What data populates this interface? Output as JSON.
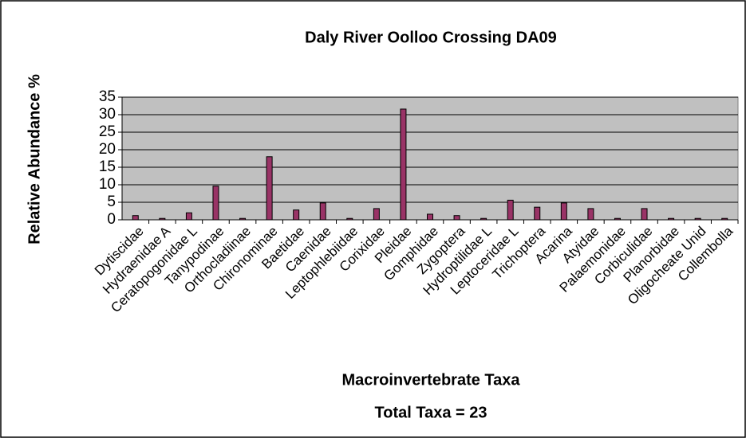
{
  "chart_data": {
    "type": "bar",
    "title": "Daly River Oolloo Crossing DA09",
    "y_label": "Relative Abundance %",
    "x_label": "Macroinvertebrate Taxa",
    "annotation": "Total Taxa = 23",
    "categories": [
      "Dytiscidae",
      "Hydraenidae A",
      "Ceratopogonidae L",
      "Tanypodinae",
      "Orthocladiinae",
      "Chironominae",
      "Baetidae",
      "Caenidae",
      "Leptophlebiidae",
      "Corixidae",
      "Pleidae",
      "Gomphidae",
      "Zygoptera",
      "Hydroptilidae L",
      "Leptoceridae L",
      "Trichoptera",
      "Acarina",
      "Atyidae",
      "Palaemonidae",
      "Corbiculidae",
      "Planorbidae",
      "Oligocheate Unid",
      "Collembolla"
    ],
    "values": [
      1.2,
      0.4,
      2,
      9.6,
      0.4,
      18,
      2.8,
      4.8,
      0.4,
      3.2,
      31.6,
      1.6,
      1.2,
      0.4,
      5.6,
      3.6,
      4.8,
      3.2,
      0.4,
      3.2,
      0.4,
      0.4,
      0.4
    ],
    "color": "#993366",
    "ylim": [
      0,
      35
    ],
    "yticks": [
      0,
      5,
      10,
      15,
      20,
      25,
      30,
      35
    ],
    "grid": true
  }
}
